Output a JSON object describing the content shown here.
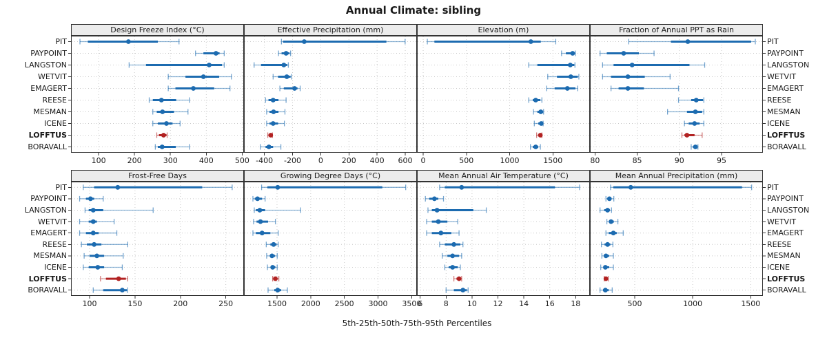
{
  "title": "Annual Climate: sibling",
  "caption": "5th-25th-50th-75th-95th Percentiles",
  "sites": [
    "PIT",
    "PAYPOINT",
    "LANGSTON",
    "WETVIT",
    "EMAGERT",
    "REESE",
    "MESMAN",
    "ICENE",
    "LOFFTUS",
    "BORAVALL"
  ],
  "highlight_site": "LOFFTUS",
  "colors": {
    "series": "#1C6BB0",
    "highlight": "#B22222",
    "header_bg": "#ECECEC",
    "panel_border": "#333333",
    "grid": "#C9C9C9",
    "text": "#1A1A1A"
  },
  "chart_data": [
    {
      "type": "scatter",
      "mark": "median-dot-with-percentile-whiskers",
      "title": "Design Freeze Index (°C)",
      "row": 0,
      "col": 0,
      "xlim": [
        23,
        505
      ],
      "ticks": [
        100,
        200,
        300,
        400,
        500
      ],
      "percentiles": [
        5,
        25,
        50,
        75,
        95
      ],
      "series": [
        [
          48,
          70,
          183,
          265,
          324
        ],
        [
          370,
          392,
          427,
          437,
          450
        ],
        [
          185,
          232,
          408,
          444,
          450
        ],
        [
          294,
          342,
          392,
          436,
          470
        ],
        [
          294,
          314,
          364,
          422,
          466
        ],
        [
          241,
          251,
          275,
          316,
          353
        ],
        [
          251,
          262,
          278,
          310,
          349
        ],
        [
          251,
          265,
          289,
          306,
          327
        ],
        [
          262,
          268,
          281,
          289,
          291
        ],
        [
          258,
          265,
          277,
          315,
          353
        ]
      ]
    },
    {
      "type": "scatter",
      "mark": "median-dot-with-percentile-whiskers",
      "title": "Effective Precipitation (mm)",
      "row": 0,
      "col": 1,
      "xlim": [
        -545,
        683
      ],
      "ticks": [
        -400,
        -200,
        0,
        200,
        400,
        600
      ],
      "percentiles": [
        5,
        25,
        50,
        75,
        95
      ],
      "series": [
        [
          -279,
          -267,
          -117,
          466,
          599
        ],
        [
          -300,
          -278,
          -246,
          -222,
          -214
        ],
        [
          -473,
          -424,
          -262,
          -238,
          -230
        ],
        [
          -338,
          -303,
          -241,
          -214,
          -209
        ],
        [
          -290,
          -262,
          -186,
          -165,
          -146
        ],
        [
          -392,
          -371,
          -338,
          -300,
          -246
        ],
        [
          -384,
          -364,
          -335,
          -300,
          -254
        ],
        [
          -384,
          -364,
          -338,
          -303,
          -258
        ],
        [
          -376,
          -370,
          -355,
          -348,
          -343
        ],
        [
          -429,
          -392,
          -368,
          -338,
          -283
        ]
      ]
    },
    {
      "type": "scatter",
      "mark": "median-dot-with-percentile-whiskers",
      "title": "Elevation (m)",
      "row": 0,
      "col": 2,
      "xlim": [
        -72,
        1928
      ],
      "ticks": [
        0,
        500,
        1000,
        1500
      ],
      "percentiles": [
        5,
        25,
        50,
        75,
        95
      ],
      "series": [
        [
          48,
          130,
          1245,
          1360,
          1533
        ],
        [
          1600,
          1650,
          1728,
          1755,
          1760
        ],
        [
          1221,
          1320,
          1701,
          1747,
          1755
        ],
        [
          1440,
          1547,
          1707,
          1787,
          1800
        ],
        [
          1427,
          1520,
          1667,
          1760,
          1787
        ],
        [
          1221,
          1267,
          1301,
          1355,
          1373
        ],
        [
          1275,
          1320,
          1360,
          1387,
          1392
        ],
        [
          1285,
          1330,
          1365,
          1380,
          1387
        ],
        [
          1312,
          1330,
          1355,
          1365,
          1373
        ],
        [
          1240,
          1267,
          1301,
          1330,
          1355
        ]
      ]
    },
    {
      "type": "scatter",
      "mark": "median-dot-with-percentile-whiskers",
      "title": "Fraction of Annual PPT as Rain",
      "row": 0,
      "col": 3,
      "xlim": [
        79.4,
        99.9
      ],
      "ticks": [
        80,
        85,
        90,
        95
      ],
      "percentiles": [
        5,
        25,
        50,
        75,
        95
      ],
      "series": [
        [
          84.0,
          89.0,
          91.0,
          98.5,
          99.0
        ],
        [
          80.6,
          81.4,
          83.4,
          85.2,
          87.0
        ],
        [
          80.9,
          82.2,
          84.4,
          91.2,
          93.0
        ],
        [
          80.9,
          81.9,
          83.9,
          85.9,
          88.9
        ],
        [
          81.9,
          82.8,
          83.9,
          85.8,
          89.9
        ],
        [
          89.9,
          91.4,
          92.0,
          92.8,
          92.9
        ],
        [
          88.6,
          90.9,
          91.9,
          92.7,
          92.9
        ],
        [
          90.6,
          91.1,
          91.8,
          92.4,
          92.9
        ],
        [
          90.3,
          90.6,
          90.9,
          91.8,
          92.7
        ],
        [
          91.4,
          91.6,
          91.9,
          92.1,
          92.2
        ]
      ]
    },
    {
      "type": "scatter",
      "mark": "median-dot-with-percentile-whiskers",
      "title": "Frost-Free Days",
      "row": 1,
      "col": 0,
      "xlim": [
        79.5,
        270
      ],
      "ticks": [
        100,
        150,
        200,
        250
      ],
      "percentiles": [
        5,
        25,
        50,
        75,
        95
      ],
      "series": [
        [
          93,
          105,
          131,
          224,
          257
        ],
        [
          89,
          96,
          101,
          105,
          115
        ],
        [
          95,
          99,
          104,
          115,
          170
        ],
        [
          89,
          99,
          104,
          108,
          127
        ],
        [
          89,
          96,
          104,
          110,
          130
        ],
        [
          91,
          97,
          105,
          113,
          142
        ],
        [
          94,
          100,
          108,
          116,
          137
        ],
        [
          93,
          99,
          109,
          116,
          136
        ],
        [
          112,
          118,
          132,
          140,
          142
        ],
        [
          104,
          115,
          136,
          141,
          142
        ]
      ]
    },
    {
      "type": "scatter",
      "mark": "median-dot-with-percentile-whiskers",
      "title": "Growing Degree Days (°C)",
      "row": 1,
      "col": 1,
      "xlim": [
        1009,
        3578
      ],
      "ticks": [
        1500,
        2000,
        2500,
        3000,
        3500
      ],
      "percentiles": [
        5,
        25,
        50,
        75,
        95
      ],
      "series": [
        [
          1271,
          1357,
          1510,
          3063,
          3411
        ],
        [
          1142,
          1169,
          1210,
          1278,
          1323
        ],
        [
          1162,
          1186,
          1244,
          1323,
          1851
        ],
        [
          1152,
          1196,
          1254,
          1367,
          1476
        ],
        [
          1142,
          1186,
          1278,
          1401,
          1517
        ],
        [
          1340,
          1401,
          1449,
          1493,
          1517
        ],
        [
          1346,
          1395,
          1425,
          1470,
          1503
        ],
        [
          1357,
          1405,
          1435,
          1475,
          1503
        ],
        [
          1435,
          1455,
          1476,
          1500,
          1527
        ],
        [
          1367,
          1459,
          1510,
          1561,
          1654
        ]
      ]
    },
    {
      "type": "scatter",
      "mark": "median-dot-with-percentile-whiskers",
      "title": "Mean Annual Air Temperature (°C)",
      "row": 1,
      "col": 2,
      "xlim": [
        5.75,
        19.1
      ],
      "ticks": [
        6,
        8,
        10,
        12,
        14,
        16,
        18
      ],
      "percentiles": [
        5,
        25,
        50,
        75,
        95
      ],
      "series": [
        [
          7.5,
          7.9,
          9.2,
          16.4,
          18.3
        ],
        [
          6.4,
          6.7,
          7.1,
          7.4,
          7.8
        ],
        [
          6.6,
          6.9,
          7.3,
          10.1,
          11.1
        ],
        [
          6.5,
          6.9,
          7.4,
          8.1,
          8.9
        ],
        [
          6.5,
          6.9,
          7.6,
          8.4,
          9.0
        ],
        [
          7.5,
          7.9,
          8.6,
          9.1,
          9.3
        ],
        [
          7.7,
          8.1,
          8.5,
          9.0,
          9.2
        ],
        [
          7.9,
          8.2,
          8.5,
          8.9,
          9.1
        ],
        [
          8.6,
          8.8,
          9.0,
          9.1,
          9.2
        ],
        [
          8.0,
          8.6,
          9.3,
          9.6,
          9.7
        ]
      ]
    },
    {
      "type": "scatter",
      "mark": "median-dot-with-percentile-whiskers",
      "title": "Mean Annual Precipitation (mm)",
      "row": 1,
      "col": 3,
      "xlim": [
        114,
        1605
      ],
      "ticks": [
        500,
        1000,
        1500
      ],
      "percentiles": [
        5,
        25,
        50,
        75,
        95
      ],
      "series": [
        [
          292,
          316,
          466,
          1425,
          1508
        ],
        [
          252,
          266,
          282,
          296,
          320
        ],
        [
          201,
          237,
          266,
          286,
          300
        ],
        [
          260,
          280,
          296,
          320,
          355
        ],
        [
          252,
          276,
          316,
          345,
          401
        ],
        [
          213,
          240,
          266,
          290,
          312
        ],
        [
          217,
          237,
          252,
          280,
          316
        ],
        [
          207,
          230,
          247,
          280,
          316
        ],
        [
          237,
          244,
          252,
          262,
          272
        ],
        [
          201,
          227,
          247,
          276,
          306
        ]
      ]
    }
  ]
}
